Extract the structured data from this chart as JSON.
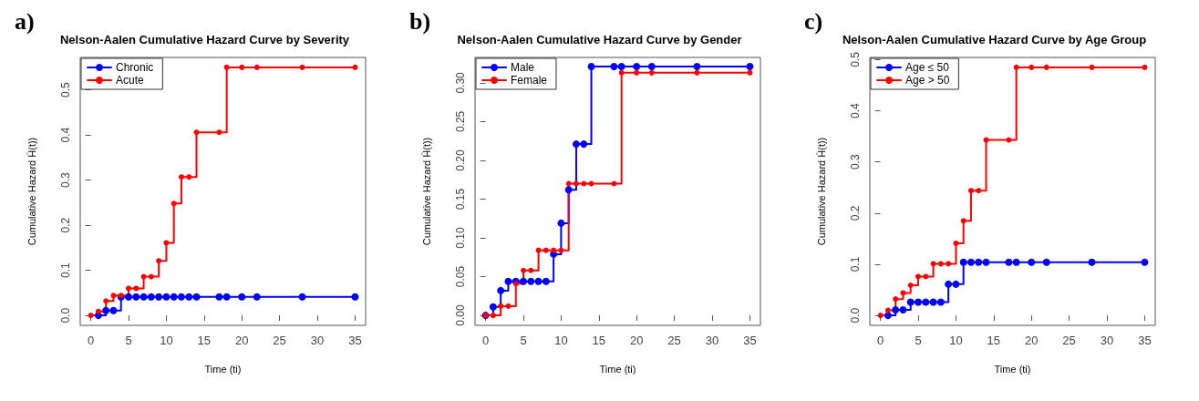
{
  "chart_data": [
    {
      "type": "step",
      "title": "Nelson-Aalen Cumulative Hazard Curve by Severity",
      "xlabel": "Time (ti)",
      "ylabel": "Cumulative Hazard Ĥ(t))",
      "annotations": [
        "a)"
      ],
      "legend": "top left",
      "grid": false,
      "marker": "circle",
      "line_style": "solid",
      "xlim": [
        -1.4,
        36.4
      ],
      "xticks": [
        0,
        5,
        10,
        15,
        20,
        25,
        30,
        35
      ],
      "ylim": [
        -0.022,
        0.572
      ],
      "yticks": [
        {
          "value": 0,
          "label": "0.0"
        },
        0.1,
        0.2,
        0.3,
        0.4,
        0.5
      ],
      "series": [
        {
          "name": "Chronic",
          "color": "#0000ff",
          "x": [
            1,
            2,
            3,
            4,
            5,
            6,
            7,
            8,
            9,
            10,
            11,
            12,
            13,
            14,
            17,
            18,
            20,
            22,
            28,
            35
          ],
          "values": [
            0,
            0.011,
            0.011,
            0.041,
            0.041,
            0.041,
            0.041,
            0.041,
            0.041,
            0.041,
            0.041,
            0.041,
            0.041,
            0.041,
            0.041,
            0.041,
            0.041,
            0.041,
            0.041,
            0.041
          ]
        },
        {
          "name": "Acute",
          "color": "#ff0000",
          "x": [
            0,
            1,
            2,
            3,
            4,
            5,
            6,
            7,
            8,
            9,
            10,
            11,
            12,
            13,
            14,
            17,
            18,
            20,
            22,
            28,
            35
          ],
          "values": [
            0,
            0.009,
            0.032,
            0.044,
            0.044,
            0.06,
            0.06,
            0.086,
            0.086,
            0.121,
            0.161,
            0.248,
            0.307,
            0.307,
            0.406,
            0.406,
            0.55,
            0.55,
            0.55,
            0.55,
            0.55
          ]
        }
      ]
    },
    {
      "type": "step",
      "title": "Nelson-Aalen Cumulative Hazard Curve by Gender",
      "xlabel": "Time (ti)",
      "ylabel": "Cumulative Hazard Ĥ(t))",
      "annotations": [
        "b)"
      ],
      "legend": "top left",
      "grid": false,
      "marker": "circle",
      "line_style": "solid",
      "xlim": [
        -1.4,
        36.4
      ],
      "xticks": [
        0,
        5,
        10,
        15,
        20,
        25,
        30,
        35
      ],
      "ylim": [
        -0.0128,
        0.3328
      ],
      "yticks": [
        {
          "value": 0,
          "label": "0.00"
        },
        0.05,
        {
          "value": 0.1,
          "label": "0.10"
        },
        0.15,
        {
          "value": 0.2,
          "label": "0.20"
        },
        0.25,
        {
          "value": 0.3,
          "label": "0.30"
        }
      ],
      "series": [
        {
          "name": "Male",
          "color": "#0000ff",
          "x": [
            0,
            1,
            2,
            3,
            4,
            5,
            6,
            7,
            8,
            9,
            10,
            11,
            12,
            13,
            14,
            17,
            18,
            20,
            22,
            28,
            35
          ],
          "values": [
            0,
            0.011,
            0.032,
            0.044,
            0.044,
            0.044,
            0.044,
            0.044,
            0.044,
            0.079,
            0.119,
            0.162,
            0.221,
            0.221,
            0.321,
            0.321,
            0.321,
            0.321,
            0.321,
            0.321,
            0.321
          ]
        },
        {
          "name": "Female",
          "color": "#ff0000",
          "x": [
            0,
            1,
            2,
            3,
            4,
            5,
            6,
            7,
            8,
            9,
            10,
            11,
            12,
            13,
            14,
            17,
            18,
            20,
            22,
            28,
            35
          ],
          "values": [
            0,
            0,
            0.012,
            0.012,
            0.041,
            0.058,
            0.058,
            0.084,
            0.084,
            0.084,
            0.084,
            0.17,
            0.17,
            0.17,
            0.17,
            0.17,
            0.313,
            0.313,
            0.313,
            0.313,
            0.313
          ]
        }
      ]
    },
    {
      "type": "step",
      "title": "Nelson-Aalen Cumulative Hazard Curve by Age Group",
      "xlabel": "Time (ti)",
      "ylabel": "Cumulative Hazard Ĥ(t))",
      "annotations": [
        "c)"
      ],
      "legend": "top left",
      "grid": false,
      "marker": "circle",
      "line_style": "solid",
      "xlim": [
        -1.4,
        36.4
      ],
      "xticks": [
        0,
        5,
        10,
        15,
        20,
        25,
        30,
        35
      ],
      "ylim": [
        -0.0194,
        0.5044
      ],
      "yticks": [
        {
          "value": 0,
          "label": "0.0"
        },
        0.1,
        0.2,
        0.3,
        0.4,
        0.5
      ],
      "series": [
        {
          "name": "Age ≤ 50",
          "color": "#0000ff",
          "x": [
            1,
            2,
            3,
            4,
            5,
            6,
            7,
            8,
            9,
            10,
            11,
            12,
            13,
            14,
            17,
            18,
            20,
            22,
            28,
            35
          ],
          "values": [
            0,
            0.011,
            0.011,
            0.026,
            0.026,
            0.026,
            0.026,
            0.026,
            0.061,
            0.061,
            0.104,
            0.104,
            0.104,
            0.104,
            0.104,
            0.104,
            0.104,
            0.104,
            0.104,
            0.104
          ]
        },
        {
          "name": "Age > 50",
          "color": "#ff0000",
          "x": [
            0,
            1,
            2,
            3,
            4,
            5,
            6,
            7,
            8,
            9,
            10,
            11,
            12,
            13,
            14,
            17,
            18,
            20,
            22,
            28,
            35
          ],
          "values": [
            0,
            0.01,
            0.032,
            0.044,
            0.059,
            0.076,
            0.076,
            0.101,
            0.101,
            0.101,
            0.141,
            0.185,
            0.244,
            0.244,
            0.343,
            0.343,
            0.485,
            0.485,
            0.485,
            0.485,
            0.485
          ]
        }
      ]
    }
  ]
}
